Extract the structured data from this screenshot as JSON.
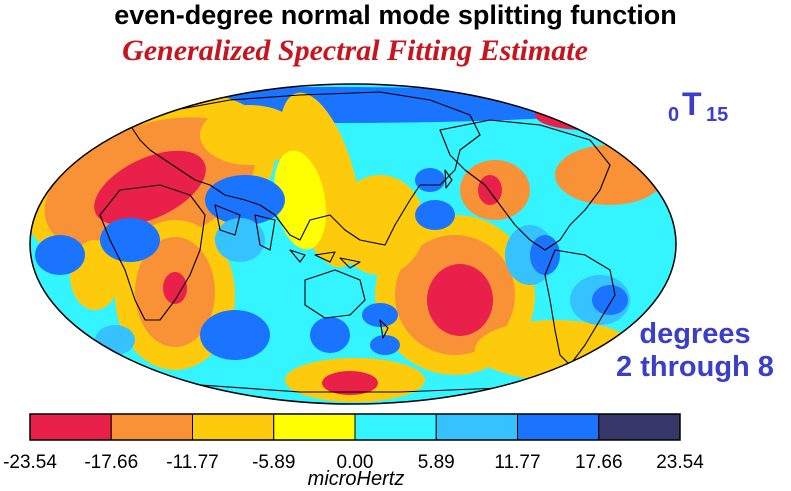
{
  "header": {
    "title": "even-degree normal mode splitting function",
    "subtitle": "Generalized Spectral Fitting Estimate"
  },
  "mode_label": {
    "n": "0",
    "letter": "T",
    "l": "15"
  },
  "degree_note": {
    "line1": "degrees",
    "line2": "2 through 8"
  },
  "colorbar": {
    "colors": [
      "#e8204a",
      "#f99236",
      "#fdcb0b",
      "#ffff00",
      "#33f4ff",
      "#36c2ff",
      "#1a74ff",
      "#353869"
    ],
    "ticks": [
      "-23.54",
      "-17.66",
      "-11.77",
      "-5.89",
      "0.00",
      "5.89",
      "11.77",
      "17.66",
      "23.54"
    ],
    "unit": "microHertz"
  },
  "map": {
    "projection": "hammer-aitoff",
    "background_color": "#33f4ff",
    "coastline_color": "#000000"
  }
}
